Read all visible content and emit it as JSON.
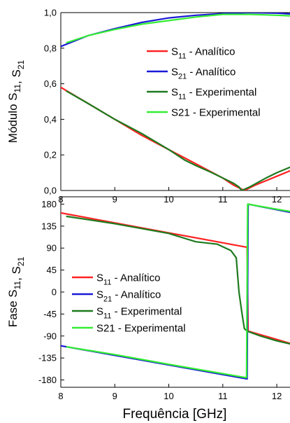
{
  "figure": {
    "xlabel": "Frequência [GHz]"
  },
  "legend_labels": {
    "top": [
      {
        "base": "S",
        "sub": "11",
        "rest": " - Analítico"
      },
      {
        "base": "S",
        "sub": "21",
        "rest": " - Analítico"
      },
      {
        "base": "S",
        "sub": "11",
        "rest": " - Experimental"
      },
      {
        "base": "S21 - Experimental",
        "sub": "",
        "rest": ""
      }
    ],
    "bottom": [
      {
        "base": "S",
        "sub": "11",
        "rest": " - Analítico"
      },
      {
        "base": "S",
        "sub": "21",
        "rest": " - Analítico"
      },
      {
        "base": "S",
        "sub": "11",
        "rest": " - Experimental"
      },
      {
        "base": "S21 - Experimental",
        "sub": "",
        "rest": ""
      }
    ]
  },
  "colors": {
    "s11_analitico": "#ff2222",
    "s21_analitico": "#1a1ad6",
    "s11_experimental": "#1e7a1e",
    "s21_experimental": "#33ee33"
  },
  "chart_data": [
    {
      "type": "line",
      "ylabel": "Módulo S11, S21",
      "xlim": [
        8,
        12.4
      ],
      "ylim": [
        0,
        1.0
      ],
      "xticks": [
        8,
        9,
        10,
        11,
        12
      ],
      "yticks": [
        "0,0",
        "0,2",
        "0,4",
        "0,6",
        "0,8",
        "1,0"
      ],
      "ytick_values": [
        0,
        0.2,
        0.4,
        0.6,
        0.8,
        1.0
      ],
      "legend_position": "center-right",
      "series": [
        {
          "name": "S11 - Analítico",
          "color": "#ff2222",
          "x": [
            8,
            8.5,
            9,
            9.5,
            10,
            10.5,
            11,
            11.2,
            11.4,
            11.6,
            12,
            12.4
          ],
          "y": [
            0.58,
            0.49,
            0.4,
            0.31,
            0.23,
            0.15,
            0.07,
            0.03,
            0.0,
            0.03,
            0.08,
            0.13
          ]
        },
        {
          "name": "S21 - Analítico",
          "color": "#1a1ad6",
          "x": [
            8,
            8.5,
            9,
            9.5,
            10,
            10.5,
            11,
            11.5,
            12,
            12.4
          ],
          "y": [
            0.81,
            0.87,
            0.91,
            0.945,
            0.97,
            0.985,
            0.995,
            1.0,
            0.997,
            0.99
          ]
        },
        {
          "name": "S11 - Experimental",
          "color": "#1e7a1e",
          "x": [
            8.1,
            8.5,
            9,
            9.5,
            10,
            10.3,
            10.5,
            10.8,
            11,
            11.2,
            11.3,
            11.35,
            11.5,
            11.8,
            12,
            12.4
          ],
          "y": [
            0.56,
            0.49,
            0.4,
            0.32,
            0.23,
            0.17,
            0.14,
            0.1,
            0.07,
            0.04,
            0.02,
            0.0,
            0.02,
            0.07,
            0.1,
            0.15
          ]
        },
        {
          "name": "S21 - Experimental",
          "color": "#33ee33",
          "x": [
            8.1,
            8.5,
            9,
            9.5,
            10,
            10.5,
            11,
            11.5,
            12,
            12.4
          ],
          "y": [
            0.83,
            0.87,
            0.905,
            0.935,
            0.955,
            0.975,
            0.99,
            0.99,
            0.985,
            0.98
          ]
        }
      ]
    },
    {
      "type": "line",
      "xlabel": "Frequência [GHz]",
      "ylabel": "Fase S11, S21",
      "xlim": [
        8,
        12.4
      ],
      "ylim": [
        -195,
        195
      ],
      "xticks": [
        8,
        9,
        10,
        11,
        12
      ],
      "yticks": [
        "180",
        "135",
        "90",
        "45",
        "0",
        "-45",
        "-90",
        "-135",
        "-180"
      ],
      "ytick_values": [
        180,
        135,
        90,
        45,
        0,
        -45,
        -90,
        -135,
        -180
      ],
      "legend_position": "center-left",
      "series": [
        {
          "name": "S11 - Analítico",
          "color": "#ff2222",
          "x": [
            8,
            11.43,
            11.45,
            11.47,
            12.4
          ],
          "y": [
            162,
            92,
            92,
            -80,
            -110
          ]
        },
        {
          "name": "S21 - Analítico",
          "color": "#1a1ad6",
          "x": [
            8,
            11.45,
            11.47,
            12.4
          ],
          "y": [
            -110,
            -178,
            180,
            160
          ]
        },
        {
          "name": "S11 - Experimental",
          "color": "#1e7a1e",
          "x": [
            8.1,
            9,
            10,
            10.5,
            10.9,
            11.15,
            11.25,
            11.3,
            11.35,
            11.4,
            11.45,
            11.5,
            11.7,
            12,
            12.4
          ],
          "y": [
            155,
            140,
            120,
            103,
            98,
            85,
            70,
            0,
            -40,
            -75,
            -80,
            -82,
            -90,
            -100,
            -110
          ]
        },
        {
          "name": "S21 - Experimental",
          "color": "#33ee33",
          "x": [
            8.1,
            9,
            10,
            11.42,
            11.44,
            11.46,
            12.4
          ],
          "y": [
            -112,
            -128,
            -148,
            -175,
            -175,
            180,
            162
          ]
        }
      ]
    }
  ]
}
